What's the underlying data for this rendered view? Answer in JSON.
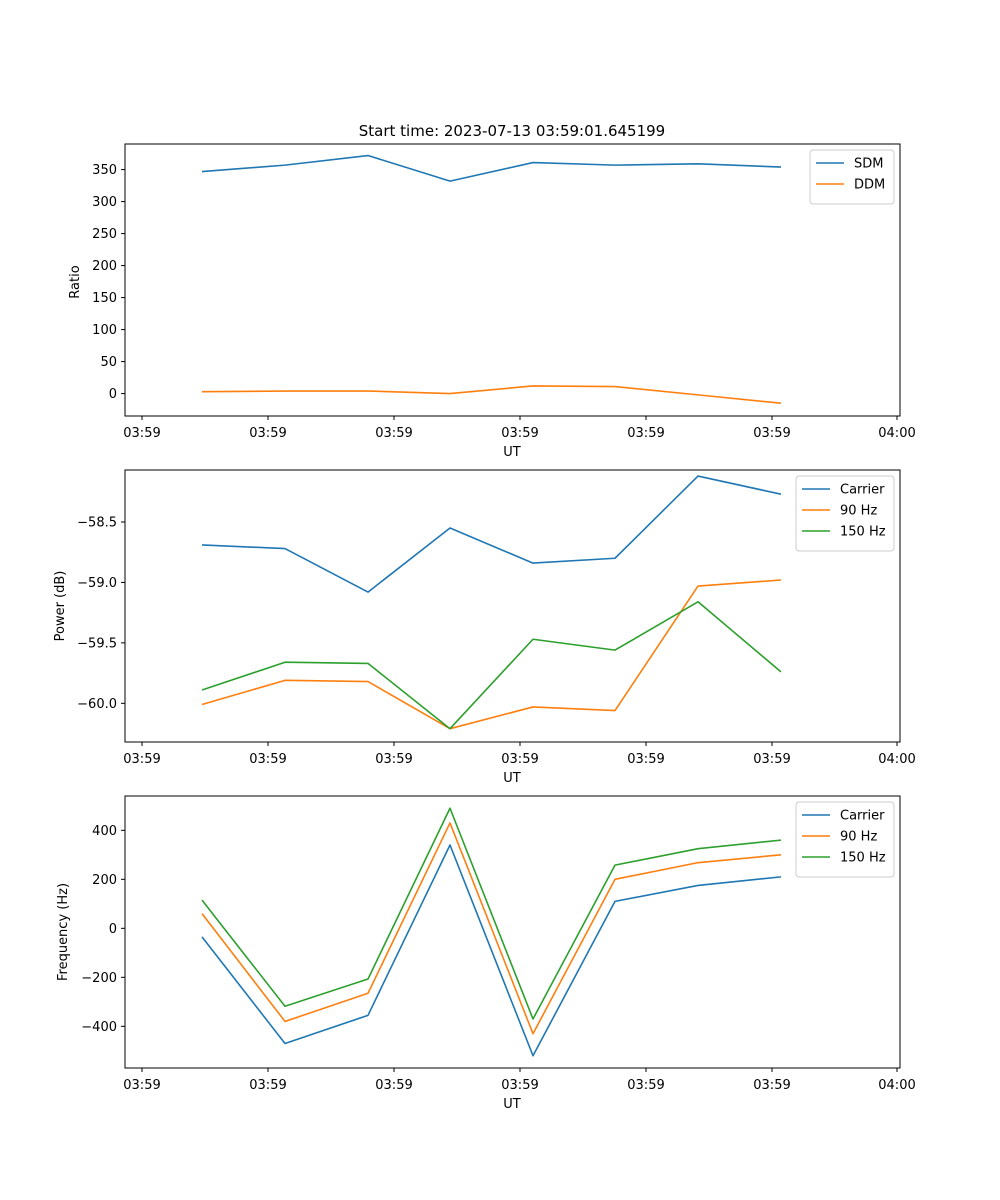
{
  "chart_data": [
    {
      "type": "line",
      "title": "Start time: 2023-07-13 03:59:01.645199",
      "xlabel": "UT",
      "ylabel": "Ratio",
      "x_tick_labels": [
        "03:59",
        "03:59",
        "03:59",
        "03:59",
        "03:59",
        "03:59",
        "04:00"
      ],
      "yticks": [
        0,
        50,
        100,
        150,
        200,
        250,
        300,
        350
      ],
      "ylim": [
        -35,
        390
      ],
      "series": [
        {
          "name": "SDM",
          "color": "#1f77b4",
          "values": [
            347,
            357,
            372,
            332,
            361,
            357,
            359,
            354
          ]
        },
        {
          "name": "DDM",
          "color": "#ff7f0e",
          "values": [
            3,
            4,
            4,
            0,
            12,
            11,
            -2,
            -15
          ]
        }
      ],
      "legend": "top-right"
    },
    {
      "type": "line",
      "title": "",
      "xlabel": "UT",
      "ylabel": "Power (dB)",
      "x_tick_labels": [
        "03:59",
        "03:59",
        "03:59",
        "03:59",
        "03:59",
        "03:59",
        "04:00"
      ],
      "yticks": [
        -60.0,
        -59.5,
        -59.0,
        -58.5
      ],
      "ylim": [
        -60.32,
        -58.07
      ],
      "series": [
        {
          "name": "Carrier",
          "color": "#1f77b4",
          "values": [
            -58.69,
            -58.72,
            -59.08,
            -58.55,
            -58.84,
            -58.8,
            -58.12,
            -58.27
          ]
        },
        {
          "name": "90 Hz",
          "color": "#ff7f0e",
          "values": [
            -60.01,
            -59.81,
            -59.82,
            -60.21,
            -60.03,
            -60.06,
            -59.03,
            -58.98
          ]
        },
        {
          "name": "150 Hz",
          "color": "#2ca02c",
          "values": [
            -59.89,
            -59.66,
            -59.67,
            -60.21,
            -59.47,
            -59.56,
            -59.16,
            -59.74
          ]
        }
      ],
      "legend": "top-right"
    },
    {
      "type": "line",
      "title": "",
      "xlabel": "UT",
      "ylabel": "Frequency (Hz)",
      "x_tick_labels": [
        "03:59",
        "03:59",
        "03:59",
        "03:59",
        "03:59",
        "03:59",
        "04:00"
      ],
      "yticks": [
        -400,
        -200,
        0,
        200,
        400
      ],
      "ylim": [
        -570,
        540
      ],
      "series": [
        {
          "name": "Carrier",
          "color": "#1f77b4",
          "values": [
            -35,
            -470,
            -355,
            340,
            -520,
            110,
            175,
            210
          ]
        },
        {
          "name": "90 Hz",
          "color": "#ff7f0e",
          "values": [
            60,
            -380,
            -265,
            430,
            -430,
            200,
            268,
            300
          ]
        },
        {
          "name": "150 Hz",
          "color": "#2ca02c",
          "values": [
            115,
            -318,
            -207,
            490,
            -370,
            258,
            325,
            360
          ]
        }
      ],
      "legend": "top-right"
    }
  ]
}
